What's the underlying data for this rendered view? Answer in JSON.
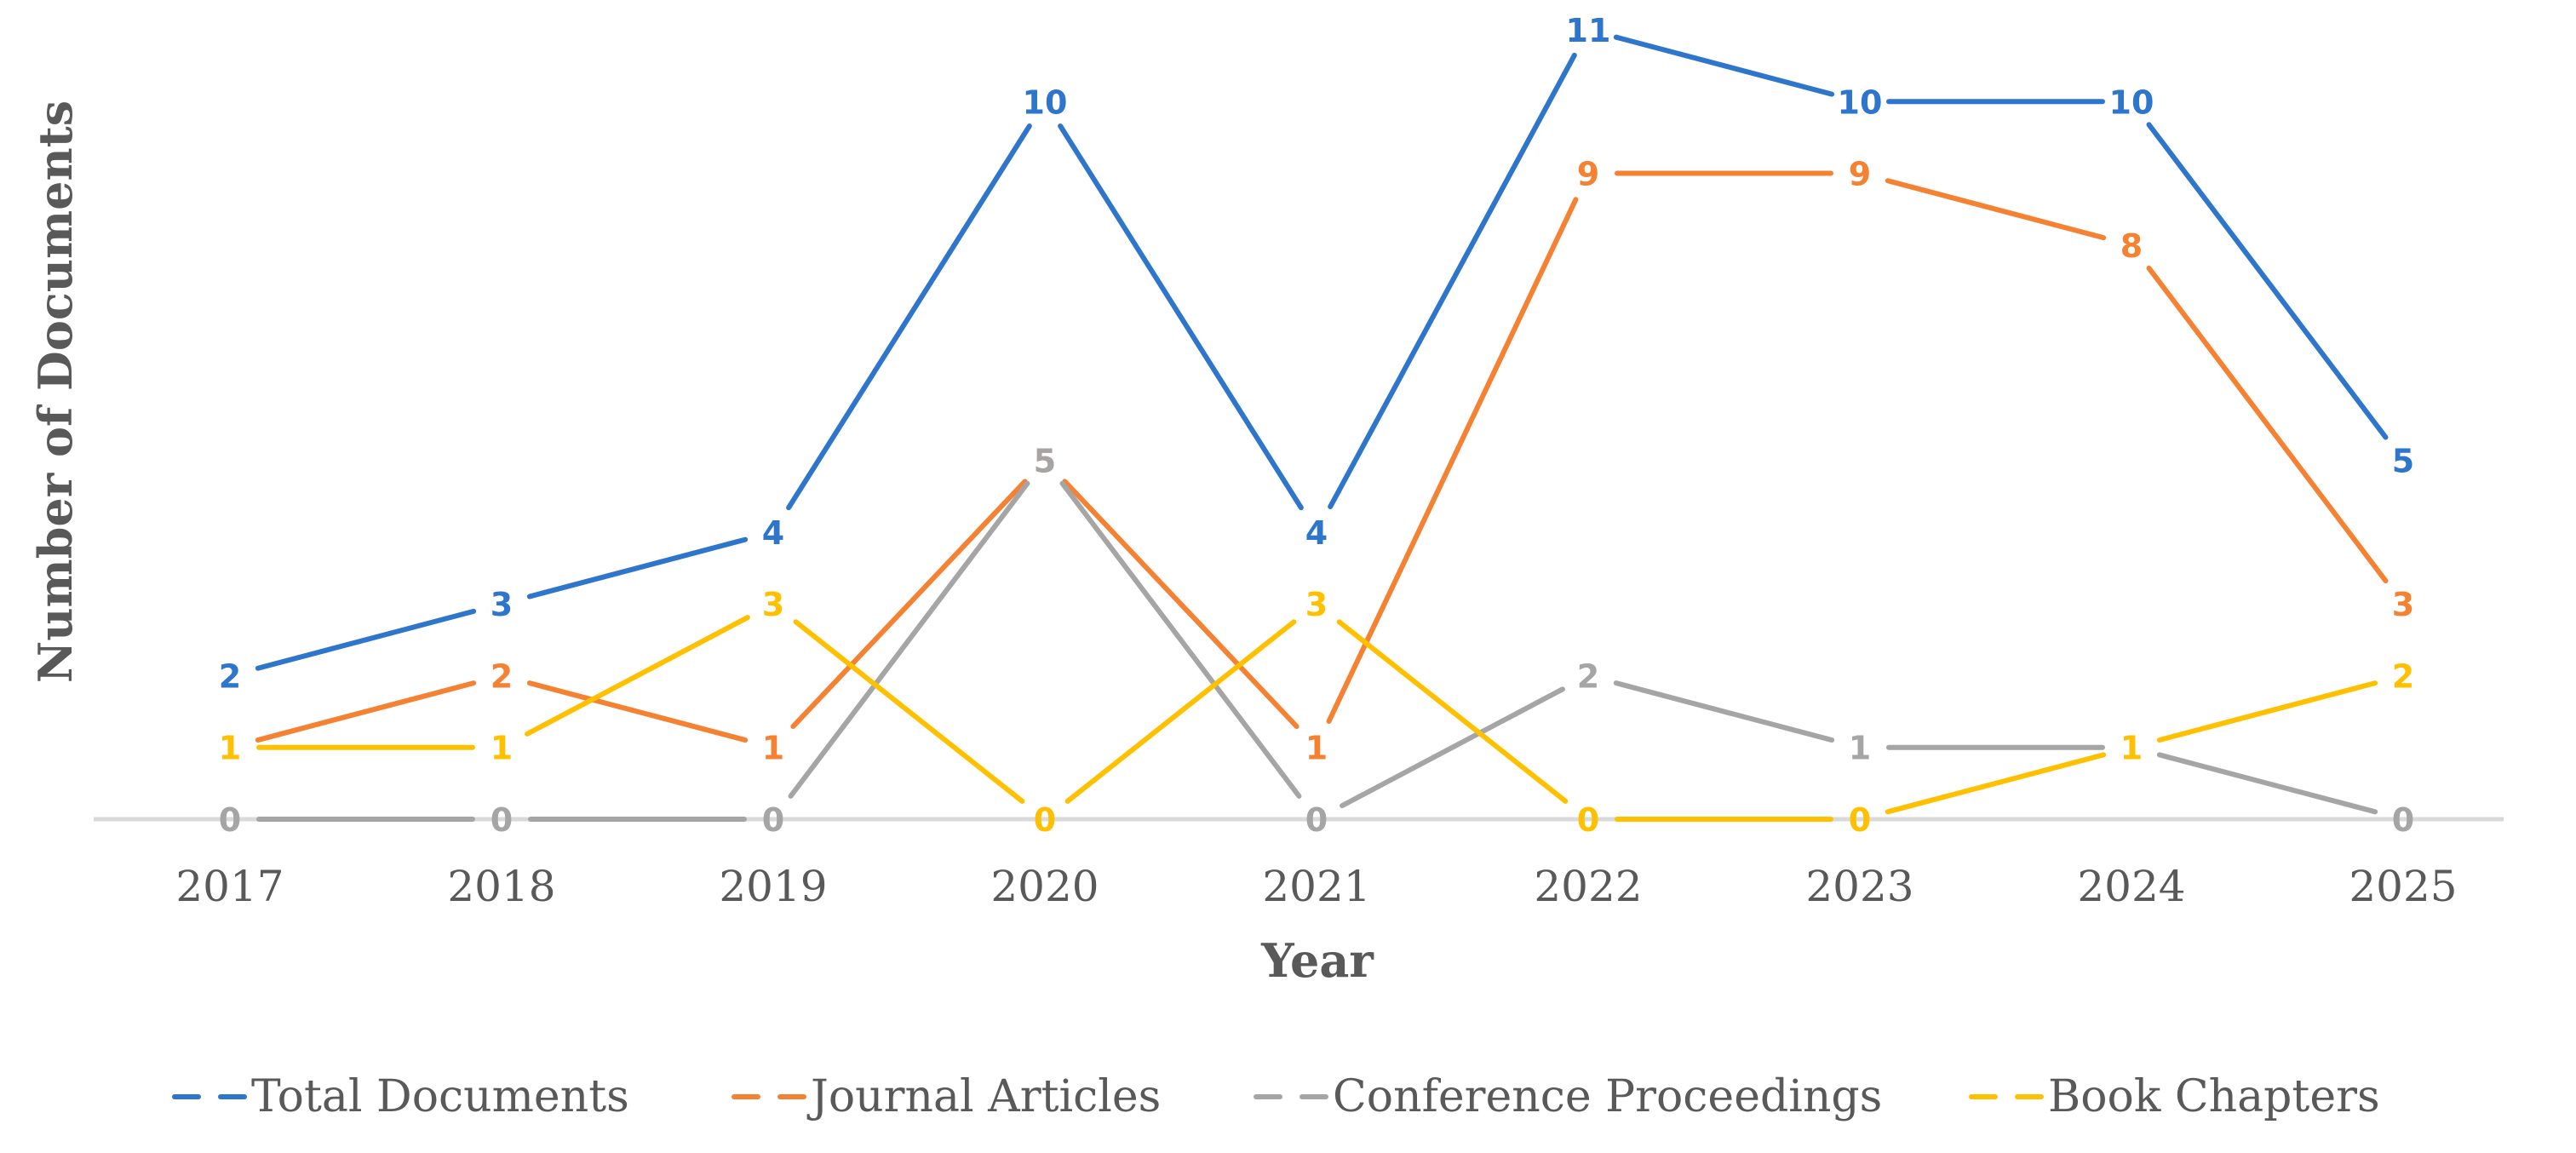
{
  "chart_data": {
    "type": "line",
    "title": "",
    "xlabel": "Year",
    "ylabel": "Number of Documents",
    "categories": [
      "2017",
      "2018",
      "2019",
      "2020",
      "2021",
      "2022",
      "2023",
      "2024",
      "2025"
    ],
    "ylim": [
      0,
      11
    ],
    "grid": false,
    "legend_position": "bottom",
    "series": [
      {
        "name": "Total Documents",
        "color": "#2E75CC",
        "values": [
          2,
          3,
          4,
          10,
          4,
          11,
          10,
          10,
          5
        ]
      },
      {
        "name": "Journal Articles",
        "color": "#F58232",
        "values": [
          1,
          2,
          1,
          5,
          1,
          9,
          9,
          8,
          3
        ]
      },
      {
        "name": "Conference Proceedings",
        "color": "#A5A5A5",
        "values": [
          0,
          0,
          0,
          5,
          0,
          2,
          1,
          1,
          0
        ]
      },
      {
        "name": "Book Chapters",
        "color": "#FFC000",
        "values": [
          1,
          1,
          3,
          0,
          3,
          0,
          0,
          1,
          2
        ]
      }
    ]
  }
}
